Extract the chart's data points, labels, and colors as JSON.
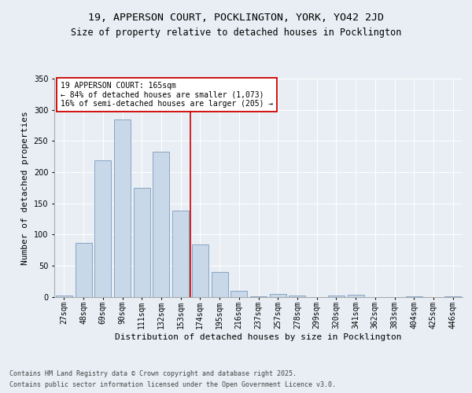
{
  "title": "19, APPERSON COURT, POCKLINGTON, YORK, YO42 2JD",
  "subtitle": "Size of property relative to detached houses in Pocklington",
  "xlabel": "Distribution of detached houses by size in Pocklington",
  "ylabel": "Number of detached properties",
  "categories": [
    "27sqm",
    "48sqm",
    "69sqm",
    "90sqm",
    "111sqm",
    "132sqm",
    "153sqm",
    "174sqm",
    "195sqm",
    "216sqm",
    "237sqm",
    "257sqm",
    "278sqm",
    "299sqm",
    "320sqm",
    "341sqm",
    "362sqm",
    "383sqm",
    "404sqm",
    "425sqm",
    "446sqm"
  ],
  "values": [
    2,
    86,
    219,
    285,
    175,
    233,
    138,
    84,
    40,
    10,
    1,
    5,
    2,
    0,
    2,
    3,
    0,
    0,
    1,
    0,
    1
  ],
  "bar_color": "#c8d8e8",
  "bar_edge_color": "#7a9bbf",
  "vline_color": "#cc0000",
  "annotation_text": "19 APPERSON COURT: 165sqm\n← 84% of detached houses are smaller (1,073)\n16% of semi-detached houses are larger (205) →",
  "annotation_box_color": "#ffffff",
  "annotation_box_edge_color": "#cc0000",
  "ylim": [
    0,
    350
  ],
  "yticks": [
    0,
    50,
    100,
    150,
    200,
    250,
    300,
    350
  ],
  "bg_color": "#e8eef4",
  "plot_bg_color": "#e8eef4",
  "footer_line1": "Contains HM Land Registry data © Crown copyright and database right 2025.",
  "footer_line2": "Contains public sector information licensed under the Open Government Licence v3.0.",
  "title_fontsize": 9.5,
  "subtitle_fontsize": 8.5,
  "xlabel_fontsize": 8,
  "ylabel_fontsize": 8,
  "tick_fontsize": 7,
  "annotation_fontsize": 7,
  "footer_fontsize": 6
}
